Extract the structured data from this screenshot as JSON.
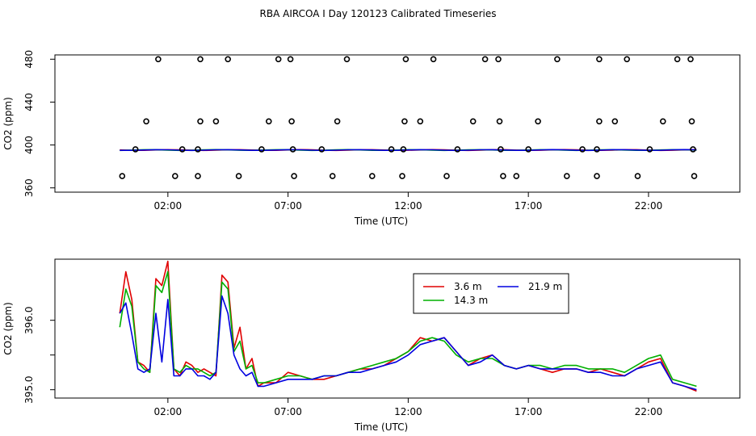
{
  "title": "RBA AIRCOA I  Day 120123  Calibrated Timeseries",
  "colors": {
    "red": "#e00000",
    "green": "#00b000",
    "blue": "#0000e0",
    "axis": "#000000"
  },
  "chart_data": [
    {
      "type": "scatter",
      "title": "",
      "xlabel": "Time (UTC)",
      "ylabel": "CO2 (ppm)",
      "x_unit": "hours UTC",
      "xlim": [
        -2.7,
        25.8
      ],
      "ylim": [
        356,
        484
      ],
      "xticks": [
        2,
        7,
        12,
        17,
        22
      ],
      "xtick_labels": [
        "02:00",
        "07:00",
        "12:00",
        "17:00",
        "22:00"
      ],
      "yticks": [
        360,
        400,
        440,
        480
      ],
      "ytick_labels": [
        "360",
        "400",
        "440",
        "480"
      ],
      "grid": false,
      "legend": "none",
      "series": [
        {
          "color": "red",
          "kind": "line",
          "baseline_y": 395.3
        },
        {
          "color": "green",
          "kind": "line",
          "baseline_y": 395.3
        },
        {
          "color": "blue",
          "kind": "line",
          "baseline_y": 395.3
        },
        {
          "kind": "open-circle",
          "points": [
            [
              1.6,
              480
            ],
            [
              3.35,
              480
            ],
            [
              4.5,
              480
            ],
            [
              6.6,
              480
            ],
            [
              7.1,
              480
            ],
            [
              9.45,
              480
            ],
            [
              11.9,
              480
            ],
            [
              13.05,
              480
            ],
            [
              15.2,
              480
            ],
            [
              15.75,
              480
            ],
            [
              18.2,
              480
            ],
            [
              19.95,
              480
            ],
            [
              21.1,
              480
            ],
            [
              23.2,
              480
            ],
            [
              23.75,
              480
            ],
            [
              1.1,
              422
            ],
            [
              3.35,
              422
            ],
            [
              4.0,
              422
            ],
            [
              6.2,
              422
            ],
            [
              7.15,
              422
            ],
            [
              9.05,
              422
            ],
            [
              11.85,
              422
            ],
            [
              12.5,
              422
            ],
            [
              14.7,
              422
            ],
            [
              15.8,
              422
            ],
            [
              17.4,
              422
            ],
            [
              19.95,
              422
            ],
            [
              20.6,
              422
            ],
            [
              22.6,
              422
            ],
            [
              23.8,
              422
            ],
            [
              0.65,
              396
            ],
            [
              2.6,
              396
            ],
            [
              3.25,
              396
            ],
            [
              5.9,
              396
            ],
            [
              7.2,
              396
            ],
            [
              8.4,
              396
            ],
            [
              11.3,
              396
            ],
            [
              11.8,
              396
            ],
            [
              14.05,
              396
            ],
            [
              15.85,
              396
            ],
            [
              17.0,
              396
            ],
            [
              19.25,
              396
            ],
            [
              19.85,
              396
            ],
            [
              22.05,
              396
            ],
            [
              23.85,
              396
            ],
            [
              0.1,
              371
            ],
            [
              2.3,
              371
            ],
            [
              3.25,
              371
            ],
            [
              4.95,
              371
            ],
            [
              7.25,
              371
            ],
            [
              8.85,
              371
            ],
            [
              10.5,
              371
            ],
            [
              11.75,
              371
            ],
            [
              13.6,
              371
            ],
            [
              15.95,
              371
            ],
            [
              16.5,
              371
            ],
            [
              18.6,
              371
            ],
            [
              19.85,
              371
            ],
            [
              21.55,
              371
            ],
            [
              23.9,
              371
            ]
          ]
        }
      ]
    },
    {
      "type": "line",
      "title": "",
      "xlabel": "Time (UTC)",
      "ylabel": "CO2 (ppm)",
      "x_unit": "hours UTC",
      "xlim": [
        -2.7,
        25.8
      ],
      "ylim": [
        394.88,
        396.88
      ],
      "xticks": [
        2,
        7,
        12,
        17,
        22
      ],
      "xtick_labels": [
        "02:00",
        "07:00",
        "12:00",
        "17:00",
        "22:00"
      ],
      "yticks": [
        395.0,
        395.5,
        396.0
      ],
      "ytick_labels": [
        "395.0",
        "",
        "396.0"
      ],
      "grid": false,
      "legend": "top-center",
      "legend_entries": [
        "3.6 m",
        "14.3 m",
        "21.9 m"
      ],
      "series": [
        {
          "name": "3.6 m",
          "color": "red",
          "x": [
            0.0,
            0.25,
            0.5,
            0.75,
            1.0,
            1.25,
            1.5,
            1.75,
            2.0,
            2.25,
            2.5,
            2.75,
            3.0,
            3.25,
            3.5,
            3.75,
            4.0,
            4.25,
            4.5,
            4.75,
            5.0,
            5.25,
            5.5,
            5.75,
            6.0,
            6.5,
            7.0,
            7.5,
            8.0,
            8.5,
            9.0,
            9.5,
            10.0,
            10.5,
            11.0,
            11.5,
            12.0,
            12.5,
            13.0,
            13.5,
            14.0,
            14.5,
            15.0,
            15.5,
            16.0,
            16.5,
            17.0,
            17.5,
            18.0,
            18.5,
            19.0,
            19.5,
            20.0,
            20.5,
            21.0,
            21.5,
            22.0,
            22.5,
            23.0,
            23.5,
            24.0
          ],
          "values": [
            396.1,
            396.7,
            396.3,
            395.4,
            395.35,
            395.25,
            396.6,
            396.5,
            396.85,
            395.3,
            395.2,
            395.4,
            395.35,
            395.25,
            395.3,
            395.25,
            395.2,
            396.65,
            396.55,
            395.6,
            395.9,
            395.3,
            395.45,
            395.05,
            395.1,
            395.1,
            395.25,
            395.2,
            395.15,
            395.15,
            395.2,
            395.25,
            395.3,
            395.3,
            395.35,
            395.45,
            395.55,
            395.75,
            395.7,
            395.75,
            395.55,
            395.35,
            395.45,
            395.5,
            395.35,
            395.3,
            395.35,
            395.3,
            395.25,
            395.3,
            395.3,
            395.25,
            395.3,
            395.25,
            395.2,
            395.3,
            395.4,
            395.45,
            395.1,
            395.05,
            394.98
          ]
        },
        {
          "name": "14.3 m",
          "color": "green",
          "x": [
            0.0,
            0.25,
            0.5,
            0.75,
            1.0,
            1.25,
            1.5,
            1.75,
            2.0,
            2.25,
            2.5,
            2.75,
            3.0,
            3.25,
            3.5,
            3.75,
            4.0,
            4.25,
            4.5,
            4.75,
            5.0,
            5.25,
            5.5,
            5.75,
            6.0,
            6.5,
            7.0,
            7.5,
            8.0,
            8.5,
            9.0,
            9.5,
            10.0,
            10.5,
            11.0,
            11.5,
            12.0,
            12.5,
            13.0,
            13.5,
            14.0,
            14.5,
            15.0,
            15.5,
            16.0,
            16.5,
            17.0,
            17.5,
            18.0,
            18.5,
            19.0,
            19.5,
            20.0,
            20.5,
            21.0,
            21.5,
            22.0,
            22.5,
            23.0,
            23.5,
            24.0
          ],
          "values": [
            395.9,
            396.45,
            396.2,
            395.4,
            395.3,
            395.25,
            396.5,
            396.4,
            396.7,
            395.3,
            395.25,
            395.35,
            395.3,
            395.3,
            395.25,
            395.2,
            395.25,
            396.55,
            396.45,
            395.55,
            395.7,
            395.3,
            395.35,
            395.1,
            395.1,
            395.15,
            395.2,
            395.2,
            395.15,
            395.2,
            395.2,
            395.25,
            395.3,
            395.35,
            395.4,
            395.45,
            395.55,
            395.7,
            395.75,
            395.7,
            395.5,
            395.4,
            395.45,
            395.45,
            395.35,
            395.3,
            395.35,
            395.35,
            395.3,
            395.35,
            395.35,
            395.3,
            395.3,
            395.3,
            395.25,
            395.35,
            395.45,
            395.5,
            395.15,
            395.1,
            395.05
          ]
        },
        {
          "name": "21.9 m",
          "color": "blue",
          "x": [
            0.0,
            0.25,
            0.5,
            0.75,
            1.0,
            1.25,
            1.5,
            1.75,
            2.0,
            2.25,
            2.5,
            2.75,
            3.0,
            3.25,
            3.5,
            3.75,
            4.0,
            4.25,
            4.5,
            4.75,
            5.0,
            5.25,
            5.5,
            5.75,
            6.0,
            6.5,
            7.0,
            7.5,
            8.0,
            8.5,
            9.0,
            9.5,
            10.0,
            10.5,
            11.0,
            11.5,
            12.0,
            12.5,
            13.0,
            13.5,
            14.0,
            14.5,
            15.0,
            15.5,
            16.0,
            16.5,
            17.0,
            17.5,
            18.0,
            18.5,
            19.0,
            19.5,
            20.0,
            20.5,
            21.0,
            21.5,
            22.0,
            22.5,
            23.0,
            23.5,
            24.0
          ],
          "values": [
            396.1,
            396.25,
            395.8,
            395.3,
            395.25,
            395.3,
            396.1,
            395.4,
            396.3,
            395.2,
            395.2,
            395.3,
            395.3,
            395.2,
            395.2,
            395.15,
            395.25,
            396.35,
            396.1,
            395.5,
            395.3,
            395.2,
            395.25,
            395.05,
            395.05,
            395.1,
            395.15,
            395.15,
            395.15,
            395.2,
            395.2,
            395.25,
            395.25,
            395.3,
            395.35,
            395.4,
            395.5,
            395.65,
            395.7,
            395.75,
            395.55,
            395.35,
            395.4,
            395.5,
            395.35,
            395.3,
            395.35,
            395.3,
            395.3,
            395.3,
            395.3,
            395.25,
            395.25,
            395.2,
            395.2,
            395.3,
            395.35,
            395.4,
            395.1,
            395.05,
            395.0
          ]
        }
      ]
    }
  ]
}
